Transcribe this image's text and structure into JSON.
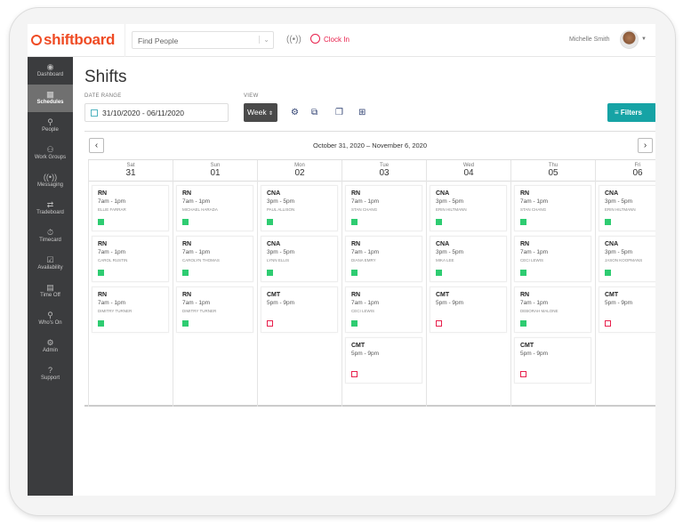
{
  "brand": "shiftboard",
  "header": {
    "search_placeholder": "Find People",
    "clock_in": "Clock In",
    "user_name": "Michelle Smith"
  },
  "sidebar": {
    "items": [
      {
        "label": "Dashboard",
        "icon": "dashboard-icon"
      },
      {
        "label": "Schedules",
        "icon": "calendar-icon",
        "active": true
      },
      {
        "label": "People",
        "icon": "person-icon"
      },
      {
        "label": "Work Groups",
        "icon": "group-icon"
      },
      {
        "label": "Messaging",
        "icon": "broadcast-icon"
      },
      {
        "label": "Tradeboard",
        "icon": "swap-icon"
      },
      {
        "label": "Timecard",
        "icon": "stopwatch-icon"
      },
      {
        "label": "Availability",
        "icon": "calendar-check-icon"
      },
      {
        "label": "Time Off",
        "icon": "calendar-off-icon"
      },
      {
        "label": "Who's On",
        "icon": "person-search-icon"
      },
      {
        "label": "Admin",
        "icon": "admin-icon"
      },
      {
        "label": "Support",
        "icon": "help-icon"
      }
    ]
  },
  "page": {
    "title": "Shifts",
    "date_range_label": "DATE RANGE",
    "date_range_value": "31/10/2020 - 06/11/2020",
    "view_label": "VIEW",
    "view_value": "Week",
    "filters": "Filters",
    "range_title": "October 31, 2020 – November 6, 2020"
  },
  "colors": {
    "accent": "#16a3a5",
    "brand": "#ef4b24",
    "filled": "#2ecc71",
    "open": "#e8204c"
  },
  "days": [
    {
      "name": "Sat",
      "date": "31",
      "shifts": [
        {
          "role": "RN",
          "time": "7am - 1pm",
          "person": "Ellie Farrar",
          "status": "filled"
        },
        {
          "role": "RN",
          "time": "7am - 1pm",
          "person": "Carol Rustin",
          "status": "filled"
        },
        {
          "role": "RN",
          "time": "7am - 1pm",
          "person": "Dimitry Turner",
          "status": "filled"
        }
      ]
    },
    {
      "name": "Sun",
      "date": "01",
      "shifts": [
        {
          "role": "RN",
          "time": "7am - 1pm",
          "person": "Michael Harada",
          "status": "filled"
        },
        {
          "role": "RN",
          "time": "7am - 1pm",
          "person": "Carolyn Thomas",
          "status": "filled"
        },
        {
          "role": "RN",
          "time": "7am - 1pm",
          "person": "Dimitry Turner",
          "status": "filled"
        }
      ]
    },
    {
      "name": "Mon",
      "date": "02",
      "shifts": [
        {
          "role": "CNA",
          "time": "3pm - 5pm",
          "person": "Paul Allison",
          "status": "filled"
        },
        {
          "role": "CNA",
          "time": "3pm - 5pm",
          "person": "Lynn Ellis",
          "status": "filled"
        },
        {
          "role": "CMT",
          "time": "5pm - 9pm",
          "person": "",
          "status": "open"
        }
      ]
    },
    {
      "name": "Tue",
      "date": "03",
      "shifts": [
        {
          "role": "RN",
          "time": "7am - 1pm",
          "person": "Stan Chang",
          "status": "filled"
        },
        {
          "role": "RN",
          "time": "7am - 1pm",
          "person": "Diana Emry",
          "status": "filled"
        },
        {
          "role": "RN",
          "time": "7am - 1pm",
          "person": "Ceci Lewis",
          "status": "filled"
        },
        {
          "role": "CMT",
          "time": "5pm - 9pm",
          "person": "",
          "status": "open"
        }
      ]
    },
    {
      "name": "Wed",
      "date": "04",
      "shifts": [
        {
          "role": "CNA",
          "time": "3pm - 5pm",
          "person": "Erin Hiltmann",
          "status": "filled"
        },
        {
          "role": "CNA",
          "time": "3pm - 5pm",
          "person": "Mika Lee",
          "status": "filled"
        },
        {
          "role": "CMT",
          "time": "5pm - 9pm",
          "person": "",
          "status": "open"
        }
      ]
    },
    {
      "name": "Thu",
      "date": "05",
      "shifts": [
        {
          "role": "RN",
          "time": "7am - 1pm",
          "person": "Stan Chang",
          "status": "filled"
        },
        {
          "role": "RN",
          "time": "7am - 1pm",
          "person": "Ceci Lewis",
          "status": "filled"
        },
        {
          "role": "RN",
          "time": "7am - 1pm",
          "person": "Deborah Malone",
          "status": "filled"
        },
        {
          "role": "CMT",
          "time": "5pm - 9pm",
          "person": "",
          "status": "open"
        }
      ]
    },
    {
      "name": "Fri",
      "date": "06",
      "shifts": [
        {
          "role": "CNA",
          "time": "3pm - 5pm",
          "person": "Erin Hiltmann",
          "status": "filled"
        },
        {
          "role": "CNA",
          "time": "3pm - 5pm",
          "person": "Jason Koopmans",
          "status": "filled"
        },
        {
          "role": "CMT",
          "time": "5pm - 9pm",
          "person": "",
          "status": "open"
        }
      ]
    }
  ]
}
